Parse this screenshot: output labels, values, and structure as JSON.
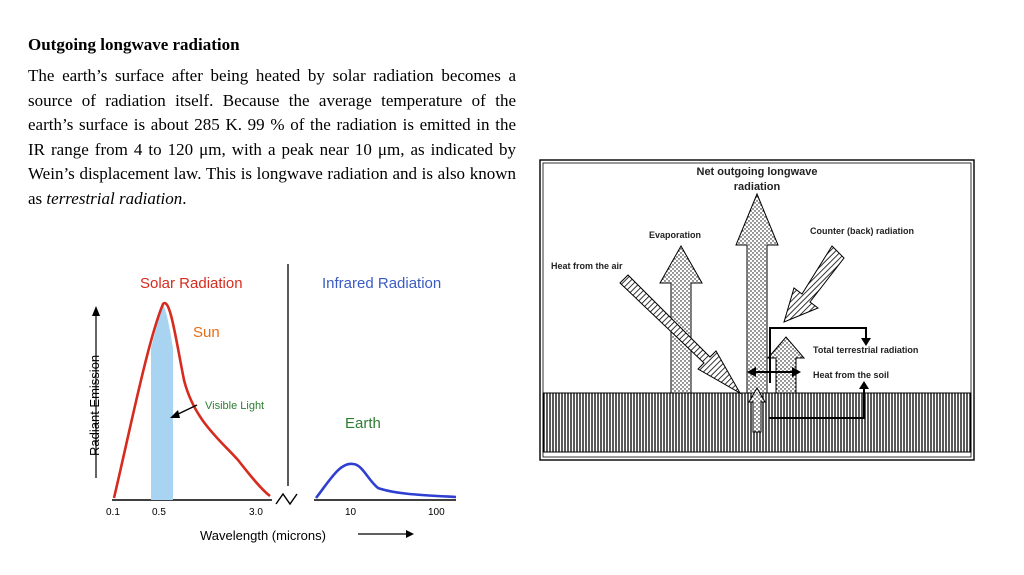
{
  "heading": "Outgoing longwave radiation",
  "paragraph": {
    "main": "The earth’s surface after being heated by solar radiation becomes a source of radiation itself. Because the average temperature of the earth’s surface is about 285 K. 99 % of the radiation is emitted in the IR range from 4 to 120 μm, with a peak near 10 μm, as indicated by Wein’s displacement law. This is longwave radiation and is also known as ",
    "emph": "terrestrial radiation",
    "end": "."
  },
  "spectrum": {
    "solar_title": "Solar Radiation",
    "infrared_title": "Infrared Radiation",
    "sun_label": "Sun",
    "earth_label": "Earth",
    "visible_label": "Visible Light",
    "ylabel": "Radiant Emission",
    "xlabel": "Wavelength  (microns)",
    "solar_ticks": [
      "0.1",
      "0.5",
      "3.0"
    ],
    "ir_ticks": [
      "10",
      "100"
    ],
    "colors": {
      "solar": "#d62b1f",
      "infrared": "#2f3fd0",
      "visible": "#a8d4f2",
      "text_green": "#2e7d32",
      "title_blue": "#3b5bc4",
      "title_orange": "#e86d1a"
    }
  },
  "energy_diagram": {
    "net_outgoing_l1": "Net outgoing longwave",
    "net_outgoing_l2": "radiation",
    "evaporation": "Evaporation",
    "counter_radiation": "Counter (back) radiation",
    "heat_from_air": "Heat from the air",
    "total_terrestrial": "Total terrestrial radiation",
    "heat_from_soil": "Heat from the soil"
  }
}
